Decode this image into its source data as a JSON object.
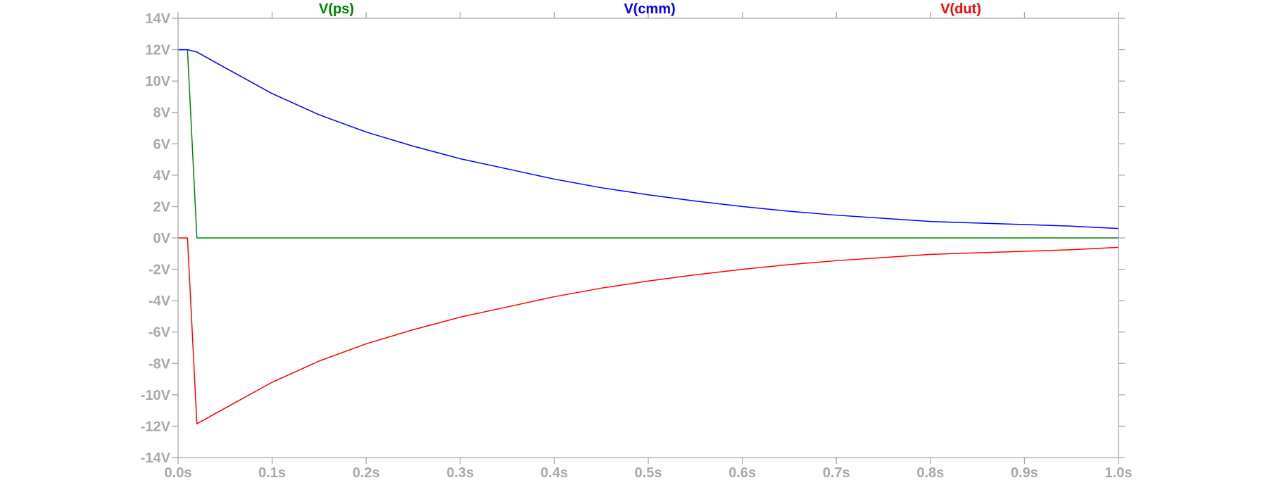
{
  "chart_data": {
    "type": "line",
    "title": "",
    "xlabel": "",
    "ylabel": "",
    "xlim": [
      0,
      1.0
    ],
    "ylim": [
      -14,
      14
    ],
    "grid": false,
    "legend_position": "top",
    "x_ticks": [
      {
        "value": 0.0,
        "label": "0.0s"
      },
      {
        "value": 0.1,
        "label": "0.1s"
      },
      {
        "value": 0.2,
        "label": "0.2s"
      },
      {
        "value": 0.3,
        "label": "0.3s"
      },
      {
        "value": 0.4,
        "label": "0.4s"
      },
      {
        "value": 0.5,
        "label": "0.5s"
      },
      {
        "value": 0.6,
        "label": "0.6s"
      },
      {
        "value": 0.7,
        "label": "0.7s"
      },
      {
        "value": 0.8,
        "label": "0.8s"
      },
      {
        "value": 0.9,
        "label": "0.9s"
      },
      {
        "value": 1.0,
        "label": "1.0s"
      }
    ],
    "y_ticks": [
      {
        "value": 14,
        "label": "14V"
      },
      {
        "value": 12,
        "label": "12V"
      },
      {
        "value": 10,
        "label": "10V"
      },
      {
        "value": 8,
        "label": "8V"
      },
      {
        "value": 6,
        "label": "6V"
      },
      {
        "value": 4,
        "label": "4V"
      },
      {
        "value": 2,
        "label": "2V"
      },
      {
        "value": 0,
        "label": "0V"
      },
      {
        "value": -2,
        "label": "-2V"
      },
      {
        "value": -4,
        "label": "-4V"
      },
      {
        "value": -6,
        "label": "-6V"
      },
      {
        "value": -8,
        "label": "-8V"
      },
      {
        "value": -10,
        "label": "-10V"
      },
      {
        "value": -12,
        "label": "-12V"
      },
      {
        "value": -14,
        "label": "-14V"
      }
    ],
    "series": [
      {
        "name": "V(ps)",
        "color": "#008000",
        "points": [
          [
            0.0,
            12.0
          ],
          [
            0.01,
            12.0
          ],
          [
            0.02,
            0.0
          ],
          [
            1.0,
            0.0
          ]
        ]
      },
      {
        "name": "V(cmm)",
        "color": "#0000ff",
        "points": [
          [
            0.0,
            12.0
          ],
          [
            0.01,
            12.0
          ],
          [
            0.02,
            11.85
          ],
          [
            0.05,
            10.85
          ],
          [
            0.1,
            9.2
          ],
          [
            0.15,
            7.85
          ],
          [
            0.2,
            6.75
          ],
          [
            0.25,
            5.85
          ],
          [
            0.3,
            5.05
          ],
          [
            0.35,
            4.4
          ],
          [
            0.4,
            3.75
          ],
          [
            0.45,
            3.2
          ],
          [
            0.5,
            2.75
          ],
          [
            0.55,
            2.35
          ],
          [
            0.6,
            2.0
          ],
          [
            0.65,
            1.7
          ],
          [
            0.7,
            1.45
          ],
          [
            0.75,
            1.25
          ],
          [
            0.8,
            1.05
          ],
          [
            0.85,
            0.95
          ],
          [
            0.9,
            0.85
          ],
          [
            0.95,
            0.75
          ],
          [
            1.0,
            0.6
          ]
        ]
      },
      {
        "name": "V(dut)",
        "color": "#ff0000",
        "points": [
          [
            0.0,
            0.0
          ],
          [
            0.01,
            0.0
          ],
          [
            0.02,
            -11.85
          ],
          [
            0.05,
            -10.85
          ],
          [
            0.1,
            -9.2
          ],
          [
            0.15,
            -7.85
          ],
          [
            0.2,
            -6.75
          ],
          [
            0.25,
            -5.85
          ],
          [
            0.3,
            -5.05
          ],
          [
            0.35,
            -4.4
          ],
          [
            0.4,
            -3.75
          ],
          [
            0.45,
            -3.2
          ],
          [
            0.5,
            -2.75
          ],
          [
            0.55,
            -2.35
          ],
          [
            0.6,
            -2.0
          ],
          [
            0.65,
            -1.7
          ],
          [
            0.7,
            -1.45
          ],
          [
            0.75,
            -1.25
          ],
          [
            0.8,
            -1.05
          ],
          [
            0.85,
            -0.95
          ],
          [
            0.9,
            -0.85
          ],
          [
            0.95,
            -0.75
          ],
          [
            1.0,
            -0.6
          ]
        ]
      }
    ]
  }
}
